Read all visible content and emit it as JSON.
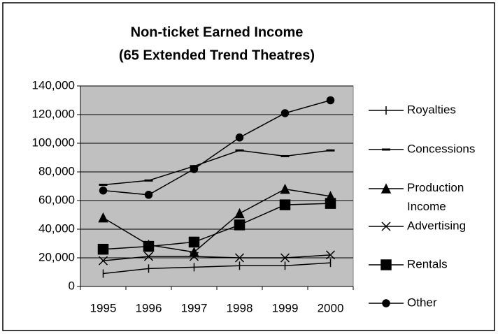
{
  "chart_data": {
    "type": "line",
    "title": "Non-ticket Earned Income",
    "subtitle": "(65 Extended Trend Theatres)",
    "categories": [
      "1995",
      "1996",
      "1997",
      "1998",
      "1999",
      "2000"
    ],
    "series": [
      {
        "name": "Royalties",
        "color": "#000000",
        "marker": "plus",
        "values": [
          9000,
          12500,
          13500,
          14500,
          14500,
          16500
        ]
      },
      {
        "name": "Concessions",
        "color": "#000000",
        "marker": "dash",
        "values": [
          71000,
          74000,
          84000,
          95000,
          91000,
          95000
        ]
      },
      {
        "name": "Production Income",
        "color": "#000000",
        "marker": "triangle",
        "values": [
          48000,
          29000,
          24000,
          51000,
          68000,
          63000
        ]
      },
      {
        "name": "Advertising",
        "color": "#000000",
        "marker": "x",
        "values": [
          18000,
          21000,
          21000,
          20000,
          20000,
          22000
        ]
      },
      {
        "name": "Rentals",
        "color": "#000000",
        "marker": "square",
        "values": [
          26000,
          28000,
          31000,
          43000,
          57000,
          58000
        ]
      },
      {
        "name": "Other",
        "color": "#000000",
        "marker": "circle",
        "values": [
          67000,
          64000,
          82000,
          104000,
          121000,
          130000
        ]
      }
    ],
    "ylim": [
      0,
      140000
    ],
    "yticks": [
      0,
      {
        "value": 20000,
        "label": "20,000"
      },
      {
        "value": 40000,
        "label": "40,000"
      },
      {
        "value": 60000,
        "label": "60,000"
      },
      {
        "value": 80000,
        "label": "80,000"
      },
      {
        "value": 100000,
        "label": "100,000"
      },
      {
        "value": 120000,
        "label": "120,000"
      },
      {
        "value": 140000,
        "label": "140,000"
      }
    ],
    "grid": true,
    "legend": "right",
    "plot_background": "#c0c0c0"
  }
}
